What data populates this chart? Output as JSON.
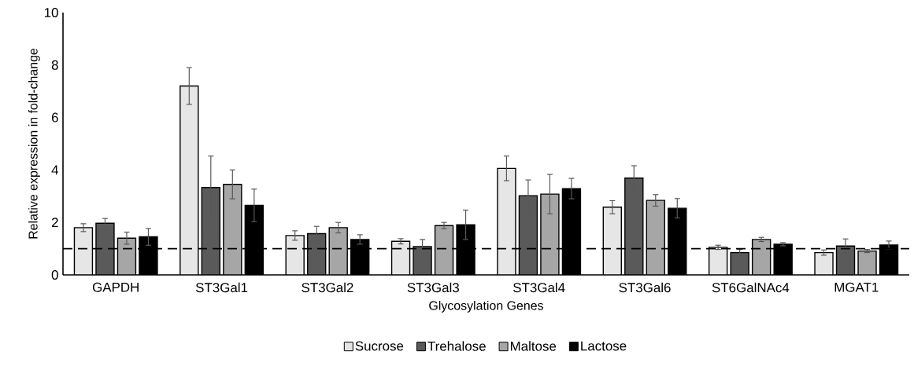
{
  "chart_data": {
    "type": "bar",
    "xlabel": "Glycosylation Genes",
    "ylabel": "Relative expression in fold-change",
    "categories": [
      "GAPDH",
      "ST3Gal1",
      "ST3Gal2",
      "ST3Gal3",
      "ST3Gal4",
      "ST3Gal6",
      "ST6GalNAc4",
      "MGAT1"
    ],
    "series": [
      {
        "name": "Sucrose",
        "color": "#e6e6e6",
        "values": [
          1.8,
          7.2,
          1.5,
          1.28,
          4.06,
          2.58,
          1.05,
          0.85
        ],
        "errors": [
          0.15,
          0.7,
          0.18,
          0.1,
          0.47,
          0.25,
          0.08,
          0.1
        ]
      },
      {
        "name": "Trehalose",
        "color": "#5a5a5a",
        "values": [
          1.97,
          3.33,
          1.57,
          1.08,
          3.02,
          3.69,
          0.85,
          1.1
        ],
        "errors": [
          0.18,
          1.2,
          0.28,
          0.27,
          0.6,
          0.47,
          0.12,
          0.27
        ]
      },
      {
        "name": "Maltose",
        "color": "#a6a6a6",
        "values": [
          1.4,
          3.45,
          1.8,
          1.88,
          3.08,
          2.84,
          1.35,
          0.91
        ],
        "errors": [
          0.23,
          0.55,
          0.2,
          0.12,
          0.75,
          0.22,
          0.08,
          0.06
        ]
      },
      {
        "name": "Lactose",
        "color": "#000000",
        "values": [
          1.45,
          2.65,
          1.35,
          1.91,
          3.29,
          2.54,
          1.17,
          1.14
        ],
        "errors": [
          0.32,
          0.62,
          0.18,
          0.56,
          0.39,
          0.37,
          0.06,
          0.15
        ]
      }
    ],
    "ylim": [
      0,
      10
    ],
    "yticks": [
      0,
      2,
      4,
      6,
      8,
      10
    ],
    "grid": false,
    "legend": "bottom",
    "ref_lines": [
      {
        "axis": "y",
        "value": 1,
        "line_style": "dashed",
        "color": "#000000"
      }
    ]
  }
}
